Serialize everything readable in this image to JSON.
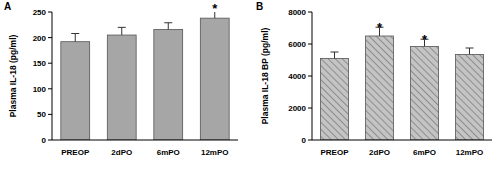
{
  "chart_data": [
    {
      "panel": "A",
      "type": "bar",
      "y_label": "Plasma IL-18 (pg/ml)",
      "categories": [
        "PREOP",
        "2dPO",
        "6mPO",
        "12mPO"
      ],
      "values": [
        192,
        205,
        216,
        238
      ],
      "errors": [
        16,
        15,
        13,
        20
      ],
      "color": "#a6a6a6",
      "ylim": [
        0,
        250
      ],
      "yticks": [
        0,
        50,
        100,
        150,
        200,
        250
      ],
      "annotations": [
        {
          "text": "*",
          "category": "12mPO"
        }
      ]
    },
    {
      "panel": "B",
      "type": "bar",
      "y_label": "Plasma IL-18 BP (pg/ml)",
      "categories": [
        "PREOP",
        "2dPO",
        "6mPO",
        "12mPO"
      ],
      "values": [
        5100,
        6500,
        5850,
        5350
      ],
      "errors": [
        400,
        550,
        450,
        400
      ],
      "color": "#c4c4c4",
      "ylim": [
        0,
        8000
      ],
      "yticks": [
        0,
        2000,
        4000,
        6000,
        8000
      ],
      "annotations": [
        {
          "text": "*",
          "category": "2dPO"
        },
        {
          "text": "*",
          "category": "6mPO"
        }
      ]
    }
  ]
}
